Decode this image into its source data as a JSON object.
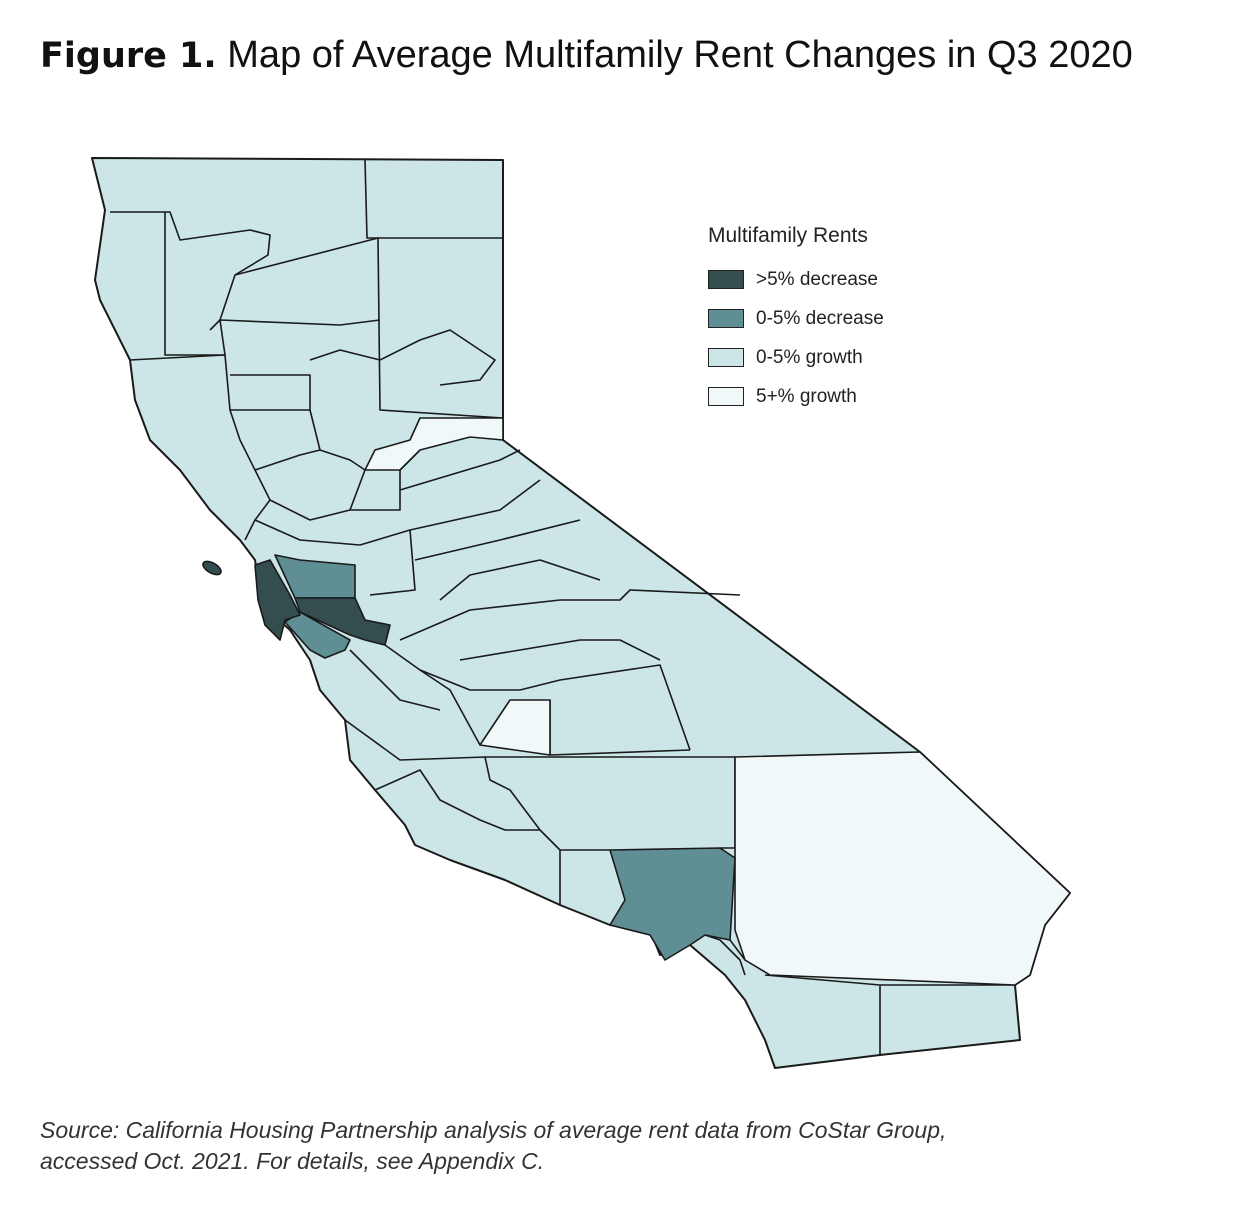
{
  "title": {
    "bold": "Figure 1.",
    "text": " Map of Average Multifamily Rent Changes in Q3 2020"
  },
  "legend": {
    "title": "Multifamily Rents",
    "items": [
      {
        "label": ">5% decrease",
        "color": "#344e50"
      },
      {
        "label": "0-5% decrease",
        "color": "#5f8f94"
      },
      {
        "label": "0-5% growth",
        "color": "#cce5e6"
      },
      {
        "label": "5+% growth",
        "color": "#f0f8fa"
      }
    ]
  },
  "source": {
    "line1": "Source: California Housing Partnership analysis of average rent data from CoStar Group,",
    "line2": "accessed Oct. 2021. For details, see Appendix C."
  }
}
